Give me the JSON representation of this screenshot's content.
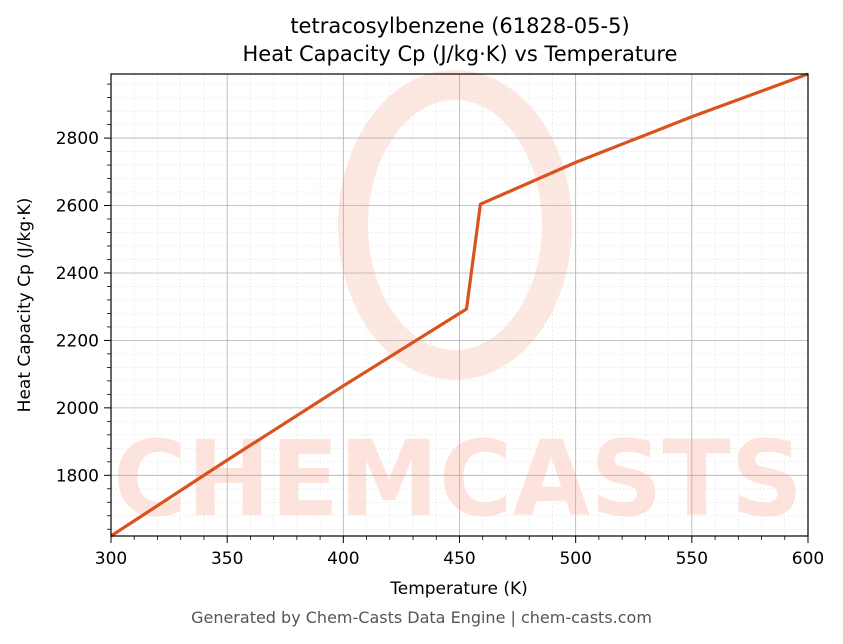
{
  "chart_data": {
    "type": "line",
    "title_line1": "tetracosylbenzene (61828-05-5)",
    "title_line2": "Heat Capacity Cp (J/kg·K) vs Temperature",
    "xlabel": "Temperature (K)",
    "ylabel": "Heat Capacity Cp (J/kg·K)",
    "xlim": [
      300,
      600
    ],
    "ylim": [
      1620,
      2990
    ],
    "x_ticks": [
      300,
      350,
      400,
      450,
      500,
      550,
      600
    ],
    "y_ticks": [
      1800,
      2000,
      2200,
      2400,
      2600,
      2800
    ],
    "grid": true,
    "series": [
      {
        "color": "#d9531e",
        "x": [
          300,
          350,
          400,
          453,
          459,
          500,
          550,
          600
        ],
        "y": [
          1620,
          1845,
          2065,
          2293,
          2604,
          2728,
          2863,
          2990
        ]
      }
    ]
  },
  "watermark": {
    "text": "CHEMCASTS",
    "color": "#fde3dc"
  },
  "footer": "Generated by Chem-Casts Data Engine | chem-casts.com"
}
